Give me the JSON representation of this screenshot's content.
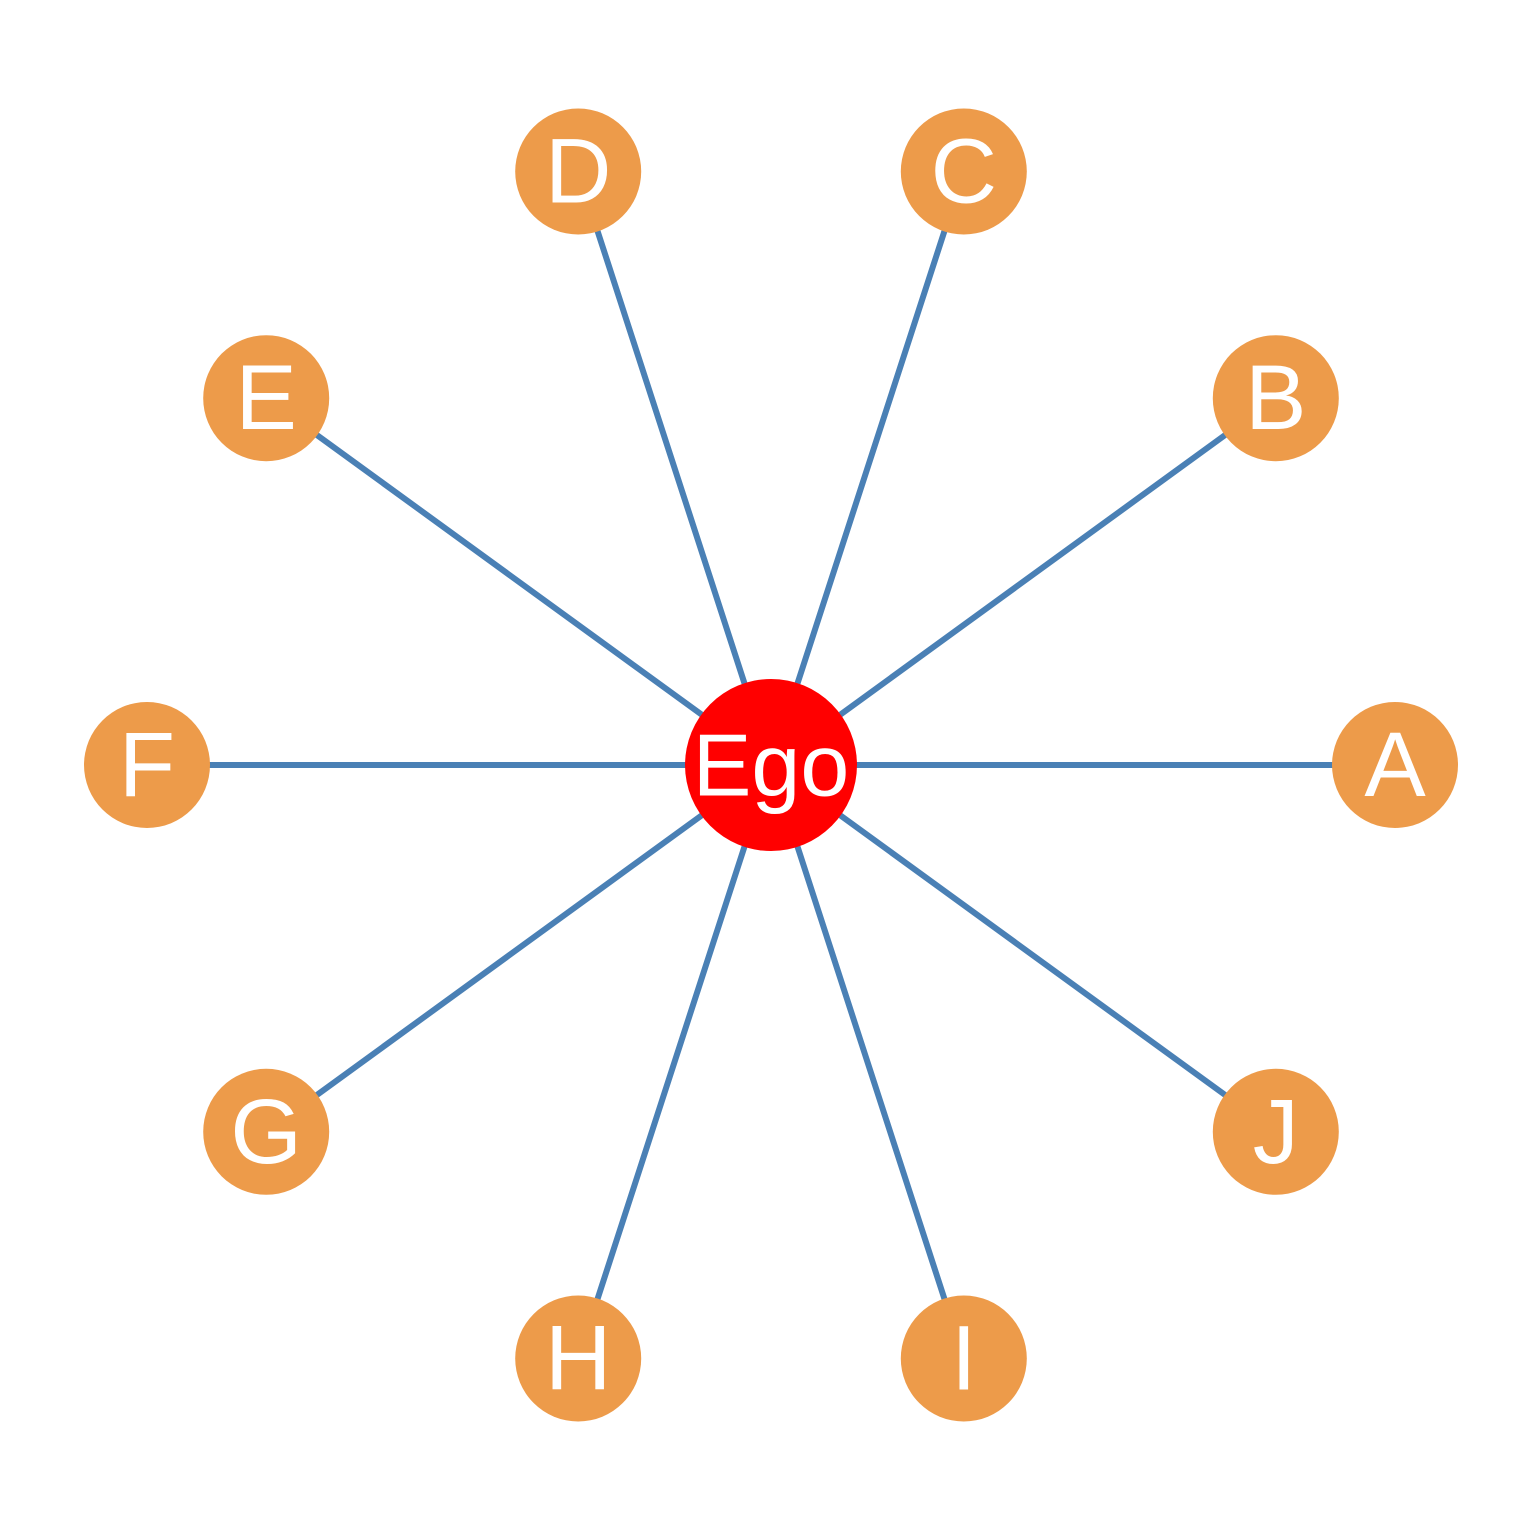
{
  "colors": {
    "background": "#ffffff",
    "edge": "#4a80b5",
    "center_node": "#ff0000",
    "leaf_node": "#ed9b4a",
    "label": "#ffffff"
  },
  "center": {
    "label": "Ego"
  },
  "nodes": [
    {
      "label": "A"
    },
    {
      "label": "B"
    },
    {
      "label": "C"
    },
    {
      "label": "D"
    },
    {
      "label": "E"
    },
    {
      "label": "F"
    },
    {
      "label": "G"
    },
    {
      "label": "H"
    },
    {
      "label": "I"
    },
    {
      "label": "J"
    }
  ],
  "edges": [
    [
      "Ego",
      "A"
    ],
    [
      "Ego",
      "B"
    ],
    [
      "Ego",
      "C"
    ],
    [
      "Ego",
      "D"
    ],
    [
      "Ego",
      "E"
    ],
    [
      "Ego",
      "F"
    ],
    [
      "Ego",
      "G"
    ],
    [
      "Ego",
      "H"
    ],
    [
      "Ego",
      "I"
    ],
    [
      "Ego",
      "J"
    ]
  ]
}
